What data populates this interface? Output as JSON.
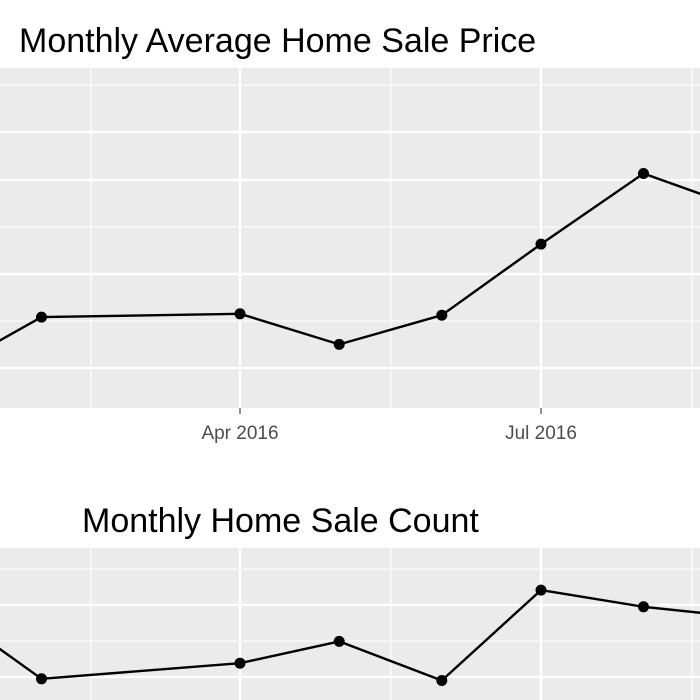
{
  "chart_data": [
    {
      "type": "line",
      "title": "Monthly Average Home Sale Price",
      "xlabel": "",
      "ylabel": "",
      "grid": true,
      "legend": "none",
      "x_tick_labels": [
        "Apr 2016",
        "Jul 2016"
      ],
      "x": [
        "2016-02-01",
        "2016-04-01",
        "2016-05-01",
        "2016-06-01",
        "2016-07-01",
        "2016-08-01"
      ],
      "values": [
        1.08,
        1.15,
        0.5,
        1.12,
        2.63,
        4.13
      ]
    },
    {
      "type": "line",
      "title": "Monthly Home Sale Count",
      "xlabel": "",
      "ylabel": "",
      "grid": true,
      "legend": "none",
      "x_tick_labels": [],
      "x": [
        "2016-02-01",
        "2016-04-01",
        "2016-05-01",
        "2016-06-01",
        "2016-07-01",
        "2016-08-01"
      ],
      "values": [
        0.38,
        0.66,
        1.05,
        0.35,
        1.97,
        1.67
      ]
    }
  ],
  "colors": {
    "panel": "#EBEBEB",
    "grid": "#FFFFFF",
    "line": "#000000"
  }
}
